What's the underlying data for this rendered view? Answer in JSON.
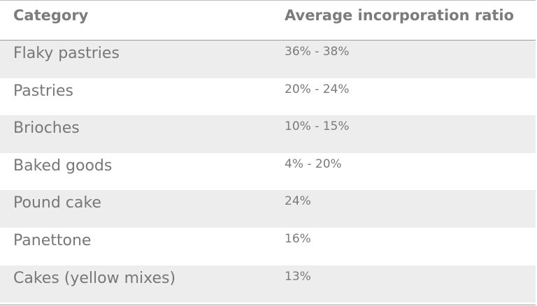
{
  "header": {
    "category_label": "Category",
    "ratio_label": "Average incorporation ratio"
  },
  "rows": [
    {
      "category": "Flaky pastries",
      "ratio": "36% - 38%"
    },
    {
      "category": "Pastries",
      "ratio": "20% - 24%"
    },
    {
      "category": "Brioches",
      "ratio": "10% - 15%"
    },
    {
      "category": "Baked goods",
      "ratio": "4% - 20%"
    },
    {
      "category": "Pound cake",
      "ratio": "24%"
    },
    {
      "category": "Panettone",
      "ratio": "16%"
    },
    {
      "category": "Cakes (yellow mixes)",
      "ratio": "13%"
    }
  ],
  "colors": {
    "text": "#7a7a7a",
    "shaded_row": "#ededed",
    "rule": "#9a9a9a"
  }
}
